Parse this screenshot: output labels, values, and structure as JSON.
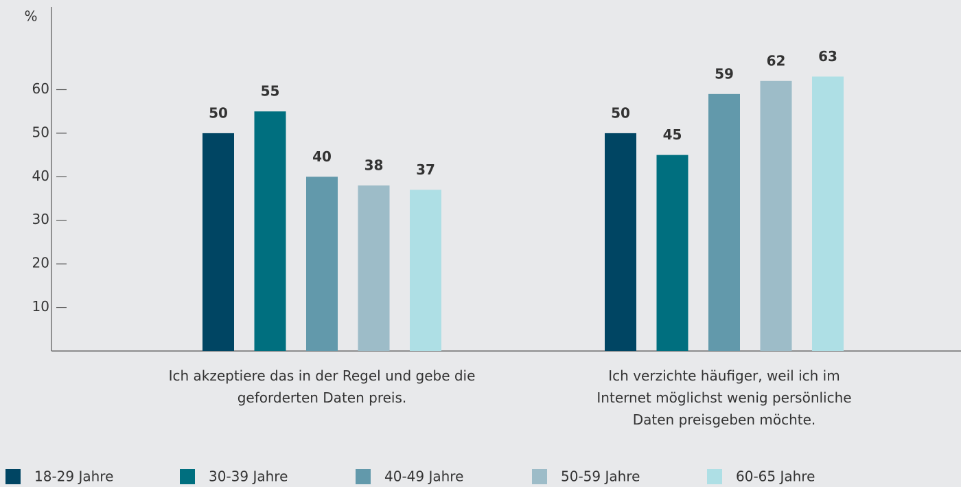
{
  "chart_data": {
    "type": "bar",
    "y_label": "%",
    "categories": [
      "Ich akzeptiere das in der Regel und gebe die geforderten Daten preis.",
      "Ich verzichte häufiger, weil ich im Internet möglichst wenig persönliche Daten preisgeben möchte."
    ],
    "series": [
      {
        "name": "18-29 Jahre",
        "color": "#004563",
        "values": [
          50,
          50
        ]
      },
      {
        "name": "30-39 Jahre",
        "color": "#006f7f",
        "values": [
          55,
          45
        ]
      },
      {
        "name": "40-49 Jahre",
        "color": "#6299ab",
        "values": [
          40,
          59
        ]
      },
      {
        "name": "50-59 Jahre",
        "color": "#9dbcc8",
        "values": [
          38,
          62
        ]
      },
      {
        "name": "60-65 Jahre",
        "color": "#aedfe5",
        "values": [
          37,
          63
        ]
      }
    ],
    "ylim": [
      0,
      79
    ],
    "yticks": [
      10,
      20,
      30,
      40,
      50,
      60
    ],
    "legend": "bottom"
  }
}
